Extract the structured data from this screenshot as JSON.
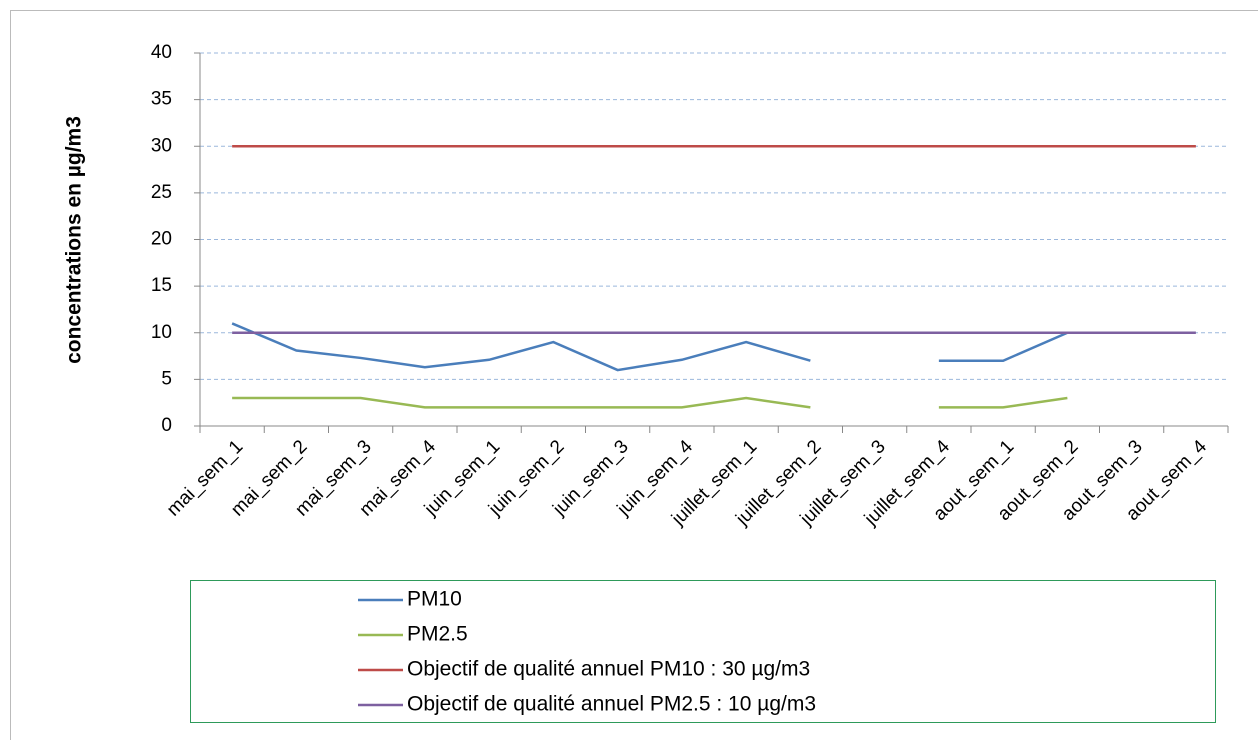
{
  "chart_data": {
    "type": "line",
    "ylabel": "concentrations en  µg/m3",
    "categories": [
      "mai_sem_1",
      "mai_sem_2",
      "mai_sem_3",
      "mai_sem_4",
      "juin_sem_1",
      "juin_sem_2",
      "juin_sem_3",
      "juin_sem_4",
      "juillet_sem_1",
      "juillet_sem_2",
      "juillet_sem_3",
      "juillet_sem_4",
      "aout_sem_1",
      "aout_sem_2",
      "aout_sem_3",
      "aout_sem_4"
    ],
    "series": [
      {
        "name": "PM10",
        "color": "#4a7ebb",
        "values": [
          11,
          8.1,
          7.3,
          6.3,
          7.1,
          9,
          6,
          7.1,
          9,
          7,
          null,
          7,
          7,
          10,
          null,
          null
        ]
      },
      {
        "name": "PM2.5",
        "color": "#98b954",
        "values": [
          3,
          3,
          3,
          2,
          2,
          2,
          2,
          2,
          3,
          2,
          null,
          2,
          2,
          3,
          null,
          null
        ]
      },
      {
        "name": "Objectif de qualité annuel PM10 : 30 µg/m3",
        "color": "#be4b48",
        "values": [
          30,
          30,
          30,
          30,
          30,
          30,
          30,
          30,
          30,
          30,
          30,
          30,
          30,
          30,
          30,
          30
        ]
      },
      {
        "name": "Objectif de qualité annuel PM2.5 : 10 µg/m3",
        "color": "#7d60a0",
        "values": [
          10,
          10,
          10,
          10,
          10,
          10,
          10,
          10,
          10,
          10,
          10,
          10,
          10,
          10,
          10,
          10
        ]
      }
    ],
    "ylim": [
      0,
      40
    ],
    "yticks": [
      0,
      5,
      10,
      15,
      20,
      25,
      30,
      35,
      40
    ],
    "grid": true,
    "legend": "bottom"
  }
}
